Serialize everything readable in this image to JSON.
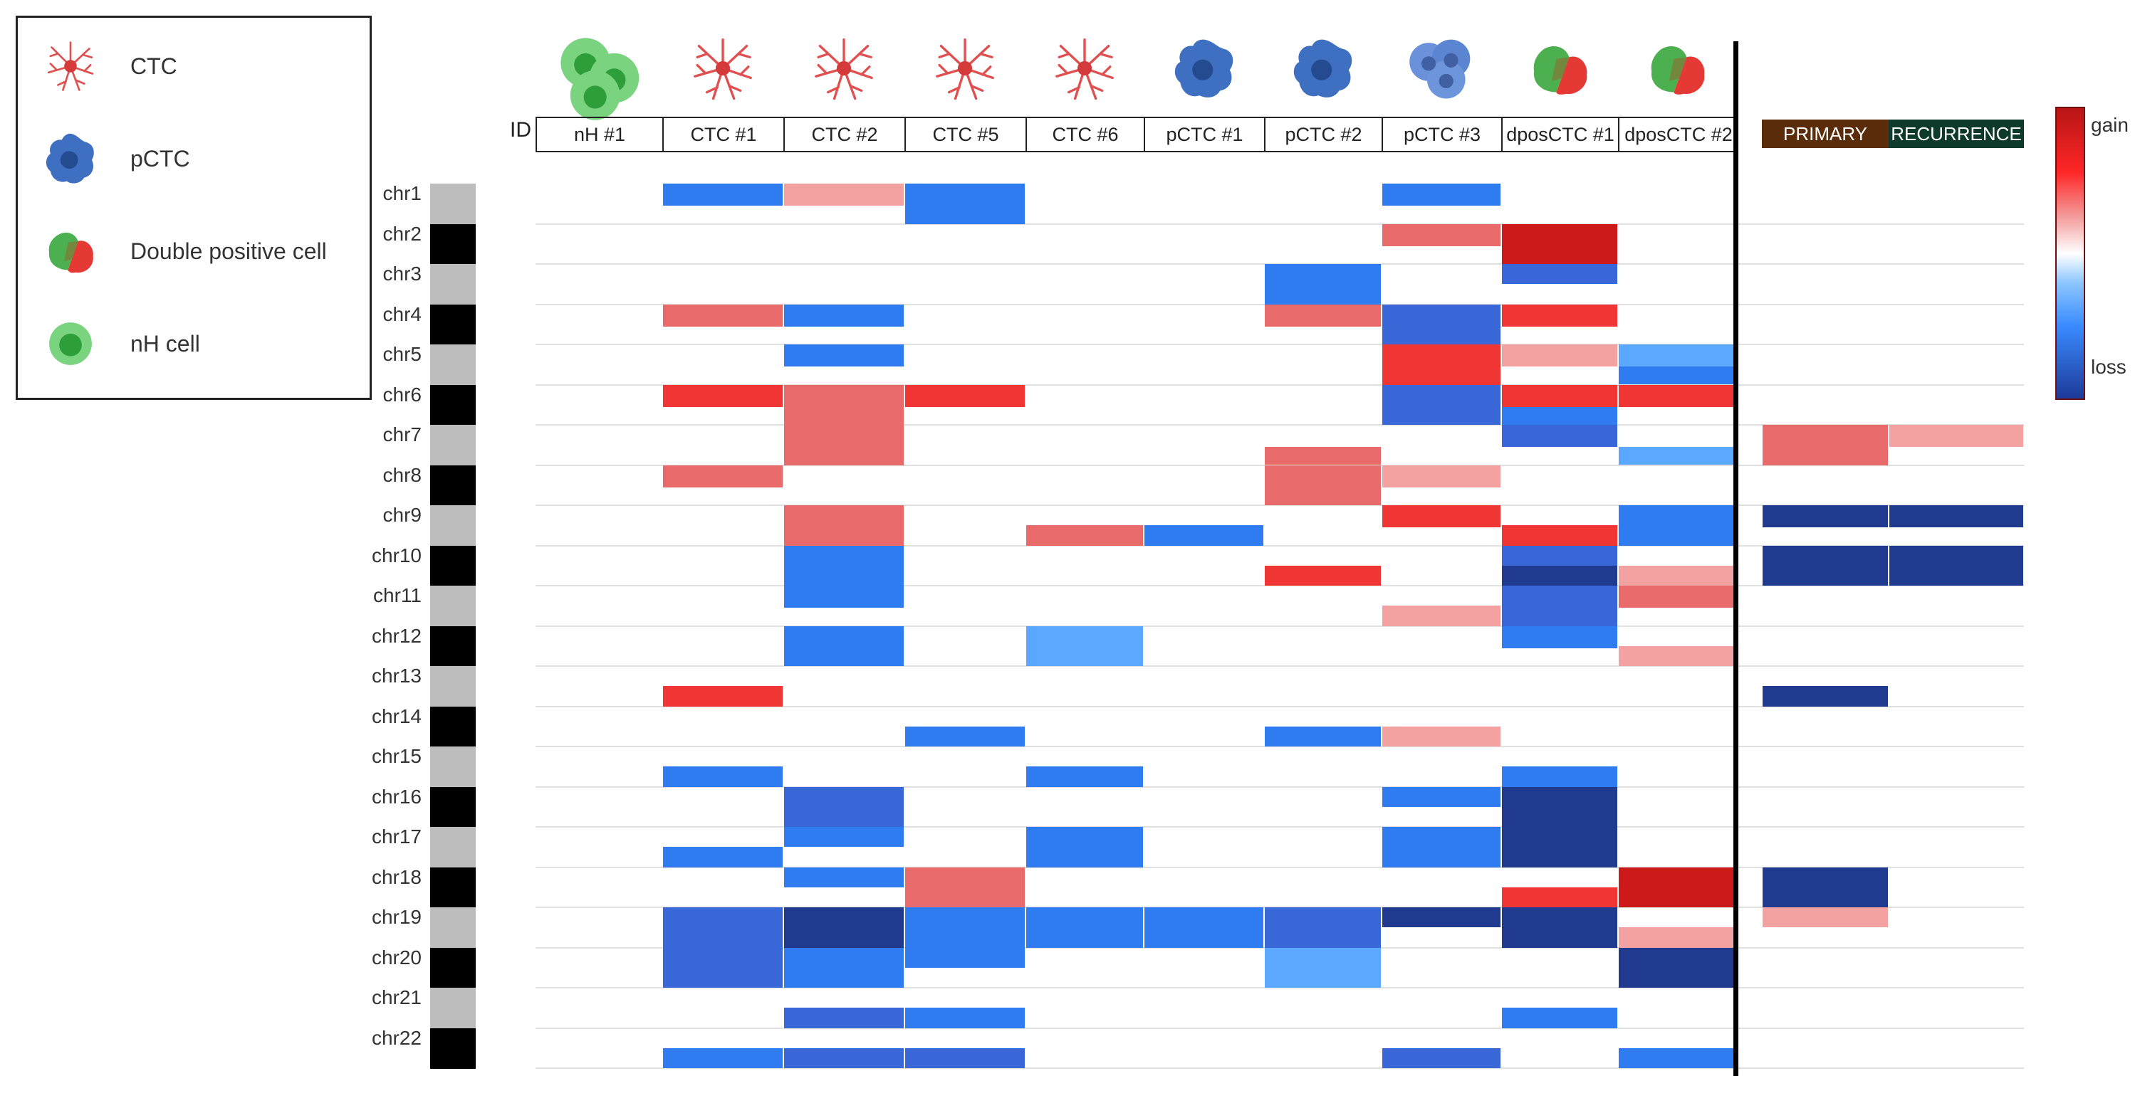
{
  "legend": {
    "items": [
      {
        "label": "CTC",
        "icon": "ctc-cell-icon"
      },
      {
        "label": "pCTC",
        "icon": "pctc-cell-icon"
      },
      {
        "label": "Double positive cell",
        "icon": "double-positive-cell-icon"
      },
      {
        "label": "nH cell",
        "icon": "nh-cell-icon"
      }
    ]
  },
  "id_label": "ID",
  "colorbar": {
    "top_label": "gain",
    "bottom_label": "loss"
  },
  "colors": {
    "gain_strong": "#cc1a1a",
    "gain_mid": "#f03535",
    "gain_weak": "#e86a6a",
    "gain_faint": "#f3a1a1",
    "loss_faint": "#5aa8ff",
    "loss_mid": "#2e7cf0",
    "loss_weak": "#3a67d8",
    "loss_strong": "#1f3a8f",
    "primary_header": "#5a2c0a",
    "recurrence_header": "#0d3a2a"
  },
  "chart_data": {
    "type": "heatmap",
    "value_scale": "copy number change, -1 (loss) to +1 (gain)",
    "rows": [
      "chr1",
      "chr2",
      "chr3",
      "chr4",
      "chr5",
      "chr6",
      "chr7",
      "chr8",
      "chr9",
      "chr10",
      "chr11",
      "chr12",
      "chr13",
      "chr14",
      "chr15",
      "chr16",
      "chr17",
      "chr18",
      "chr19",
      "chr20",
      "chr21",
      "chr22"
    ],
    "columns": [
      {
        "label": "nH #1",
        "cell_type": "nh"
      },
      {
        "label": "CTC #1",
        "cell_type": "ctc"
      },
      {
        "label": "CTC #2",
        "cell_type": "ctc"
      },
      {
        "label": "CTC #5",
        "cell_type": "ctc"
      },
      {
        "label": "CTC #6",
        "cell_type": "ctc"
      },
      {
        "label": "pCTC #1",
        "cell_type": "pctc"
      },
      {
        "label": "pCTC #2",
        "cell_type": "pctc"
      },
      {
        "label": "pCTC #3",
        "cell_type": "pctc_cluster"
      },
      {
        "label": "dposCTC #1",
        "cell_type": "dpos"
      },
      {
        "label": "dposCTC #2",
        "cell_type": "dpos"
      }
    ],
    "tumor_columns": [
      {
        "label": "PRIMARY"
      },
      {
        "label": "RECURRENCE"
      }
    ],
    "cells": [
      {
        "col": 1,
        "chr": 1,
        "start": 0.0,
        "end": 0.55,
        "value": -0.6
      },
      {
        "col": 2,
        "chr": 1,
        "start": 0.0,
        "end": 0.55,
        "value": 0.35
      },
      {
        "col": 3,
        "chr": 1,
        "start": 0.0,
        "end": 1.0,
        "value": -0.6
      },
      {
        "col": 7,
        "chr": 1,
        "start": 0.0,
        "end": 0.55,
        "value": -0.6
      },
      {
        "col": 7,
        "chr": 2,
        "start": 0.0,
        "end": 0.55,
        "value": 0.65
      },
      {
        "col": 8,
        "chr": 2,
        "start": 0.0,
        "end": 1.0,
        "value": 0.9
      },
      {
        "col": 6,
        "chr": 3,
        "start": 0.0,
        "end": 1.0,
        "value": -0.55
      },
      {
        "col": 8,
        "chr": 3,
        "start": 0.0,
        "end": 0.5,
        "value": -0.8
      },
      {
        "col": 1,
        "chr": 4,
        "start": 0.0,
        "end": 0.55,
        "value": 0.6
      },
      {
        "col": 2,
        "chr": 4,
        "start": 0.0,
        "end": 0.55,
        "value": -0.65
      },
      {
        "col": 6,
        "chr": 4,
        "start": 0.0,
        "end": 0.55,
        "value": 0.55
      },
      {
        "col": 7,
        "chr": 4,
        "start": 0.0,
        "end": 1.0,
        "value": -0.75
      },
      {
        "col": 8,
        "chr": 4,
        "start": 0.0,
        "end": 0.55,
        "value": 0.8
      },
      {
        "col": 2,
        "chr": 5,
        "start": 0.0,
        "end": 0.55,
        "value": -0.6
      },
      {
        "col": 7,
        "chr": 5,
        "start": 0.0,
        "end": 1.0,
        "value": 0.8
      },
      {
        "col": 8,
        "chr": 5,
        "start": 0.0,
        "end": 0.55,
        "value": 0.35
      },
      {
        "col": 9,
        "chr": 5,
        "start": 0.0,
        "end": 0.55,
        "value": -0.4
      },
      {
        "col": 9,
        "chr": 5,
        "start": 0.55,
        "end": 1.0,
        "value": -0.6
      },
      {
        "col": 1,
        "chr": 6,
        "start": 0.0,
        "end": 0.55,
        "value": 0.7
      },
      {
        "col": 2,
        "chr": 6,
        "start": 0.0,
        "end": 1.0,
        "value": 0.55
      },
      {
        "col": 3,
        "chr": 6,
        "start": 0.0,
        "end": 0.55,
        "value": 0.75
      },
      {
        "col": 7,
        "chr": 6,
        "start": 0.0,
        "end": 1.0,
        "value": -0.7
      },
      {
        "col": 8,
        "chr": 6,
        "start": 0.0,
        "end": 0.55,
        "value": 0.7
      },
      {
        "col": 8,
        "chr": 6,
        "start": 0.55,
        "end": 1.0,
        "value": -0.6
      },
      {
        "col": 9,
        "chr": 6,
        "start": 0.0,
        "end": 0.55,
        "value": 0.7
      },
      {
        "col": 2,
        "chr": 7,
        "start": 0.0,
        "end": 1.0,
        "value": 0.55
      },
      {
        "col": 8,
        "chr": 7,
        "start": 0.0,
        "end": 0.55,
        "value": -0.7
      },
      {
        "col": 9,
        "chr": 7,
        "start": 0.55,
        "end": 1.0,
        "value": -0.45
      },
      {
        "col": 6,
        "chr": 7,
        "start": 0.55,
        "end": 1.0,
        "value": 0.55
      },
      {
        "col": 1,
        "chr": 8,
        "start": 0.0,
        "end": 0.55,
        "value": 0.6
      },
      {
        "col": 6,
        "chr": 8,
        "start": 0.0,
        "end": 1.0,
        "value": 0.55
      },
      {
        "col": 7,
        "chr": 8,
        "start": 0.0,
        "end": 0.55,
        "value": 0.35
      },
      {
        "col": 2,
        "chr": 9,
        "start": 0.0,
        "end": 1.0,
        "value": 0.55
      },
      {
        "col": 4,
        "chr": 9,
        "start": 0.5,
        "end": 1.0,
        "value": 0.55
      },
      {
        "col": 5,
        "chr": 9,
        "start": 0.5,
        "end": 1.0,
        "value": -0.6
      },
      {
        "col": 7,
        "chr": 9,
        "start": 0.0,
        "end": 0.55,
        "value": 0.7
      },
      {
        "col": 8,
        "chr": 9,
        "start": 0.5,
        "end": 1.0,
        "value": 0.8
      },
      {
        "col": 9,
        "chr": 9,
        "start": 0.0,
        "end": 1.0,
        "value": -0.6
      },
      {
        "col": 2,
        "chr": 10,
        "start": 0.0,
        "end": 1.0,
        "value": -0.6
      },
      {
        "col": 6,
        "chr": 10,
        "start": 0.5,
        "end": 1.0,
        "value": 0.7
      },
      {
        "col": 8,
        "chr": 10,
        "start": 0.0,
        "end": 0.5,
        "value": -0.7
      },
      {
        "col": 8,
        "chr": 10,
        "start": 0.5,
        "end": 1.0,
        "value": -0.9
      },
      {
        "col": 9,
        "chr": 10,
        "start": 0.5,
        "end": 1.0,
        "value": 0.35
      },
      {
        "col": 2,
        "chr": 11,
        "start": 0.0,
        "end": 0.55,
        "value": -0.6
      },
      {
        "col": 7,
        "chr": 11,
        "start": 0.5,
        "end": 1.0,
        "value": 0.35
      },
      {
        "col": 8,
        "chr": 11,
        "start": 0.0,
        "end": 1.0,
        "value": -0.8
      },
      {
        "col": 9,
        "chr": 11,
        "start": 0.0,
        "end": 0.55,
        "value": 0.6
      },
      {
        "col": 2,
        "chr": 12,
        "start": 0.0,
        "end": 1.0,
        "value": -0.65
      },
      {
        "col": 4,
        "chr": 12,
        "start": 0.0,
        "end": 1.0,
        "value": -0.4
      },
      {
        "col": 8,
        "chr": 12,
        "start": 0.0,
        "end": 0.55,
        "value": -0.6
      },
      {
        "col": 9,
        "chr": 12,
        "start": 0.5,
        "end": 1.0,
        "value": 0.45
      },
      {
        "col": 1,
        "chr": 13,
        "start": 0.5,
        "end": 1.0,
        "value": 0.75
      },
      {
        "col": 3,
        "chr": 14,
        "start": 0.5,
        "end": 1.0,
        "value": -0.6
      },
      {
        "col": 6,
        "chr": 14,
        "start": 0.5,
        "end": 1.0,
        "value": -0.5
      },
      {
        "col": 7,
        "chr": 14,
        "start": 0.5,
        "end": 1.0,
        "value": 0.4
      },
      {
        "col": 1,
        "chr": 15,
        "start": 0.5,
        "end": 1.0,
        "value": -0.65
      },
      {
        "col": 4,
        "chr": 15,
        "start": 0.5,
        "end": 1.0,
        "value": -0.6
      },
      {
        "col": 8,
        "chr": 15,
        "start": 0.5,
        "end": 1.0,
        "value": -0.6
      },
      {
        "col": 2,
        "chr": 16,
        "start": 0.0,
        "end": 1.0,
        "value": -0.75
      },
      {
        "col": 7,
        "chr": 16,
        "start": 0.0,
        "end": 0.5,
        "value": -0.6
      },
      {
        "col": 8,
        "chr": 16,
        "start": 0.0,
        "end": 1.0,
        "value": -0.95
      },
      {
        "col": 2,
        "chr": 17,
        "start": 0.0,
        "end": 0.5,
        "value": -0.65
      },
      {
        "col": 1,
        "chr": 17,
        "start": 0.5,
        "end": 1.0,
        "value": -0.6
      },
      {
        "col": 4,
        "chr": 17,
        "start": 0.0,
        "end": 1.0,
        "value": -0.6
      },
      {
        "col": 7,
        "chr": 17,
        "start": 0.0,
        "end": 1.0,
        "value": -0.65
      },
      {
        "col": 8,
        "chr": 17,
        "start": 0.0,
        "end": 1.0,
        "value": -0.95
      },
      {
        "col": 2,
        "chr": 18,
        "start": 0.0,
        "end": 0.5,
        "value": -0.5
      },
      {
        "col": 3,
        "chr": 18,
        "start": 0.0,
        "end": 1.0,
        "value": 0.6
      },
      {
        "col": 8,
        "chr": 18,
        "start": 0.5,
        "end": 1.0,
        "value": 0.75
      },
      {
        "col": 9,
        "chr": 18,
        "start": 0.0,
        "end": 1.0,
        "value": 0.85
      },
      {
        "col": 1,
        "chr": 19,
        "start": 0.0,
        "end": 1.0,
        "value": -0.75
      },
      {
        "col": 2,
        "chr": 19,
        "start": 0.0,
        "end": 1.0,
        "value": -0.9
      },
      {
        "col": 3,
        "chr": 19,
        "start": 0.0,
        "end": 1.0,
        "value": -0.6
      },
      {
        "col": 4,
        "chr": 19,
        "start": 0.0,
        "end": 1.0,
        "value": -0.6
      },
      {
        "col": 5,
        "chr": 19,
        "start": 0.0,
        "end": 1.0,
        "value": -0.6
      },
      {
        "col": 6,
        "chr": 19,
        "start": 0.0,
        "end": 1.0,
        "value": -0.7
      },
      {
        "col": 7,
        "chr": 19,
        "start": 0.0,
        "end": 0.5,
        "value": -0.85
      },
      {
        "col": 8,
        "chr": 19,
        "start": 0.0,
        "end": 1.0,
        "value": -0.95
      },
      {
        "col": 9,
        "chr": 19,
        "start": 0.5,
        "end": 1.0,
        "value": 0.35
      },
      {
        "col": 1,
        "chr": 20,
        "start": 0.0,
        "end": 1.0,
        "value": -0.75
      },
      {
        "col": 2,
        "chr": 20,
        "start": 0.0,
        "end": 1.0,
        "value": -0.55
      },
      {
        "col": 3,
        "chr": 20,
        "start": 0.0,
        "end": 0.5,
        "value": -0.6
      },
      {
        "col": 6,
        "chr": 20,
        "start": 0.0,
        "end": 1.0,
        "value": -0.4
      },
      {
        "col": 9,
        "chr": 20,
        "start": 0.0,
        "end": 1.0,
        "value": -0.95
      },
      {
        "col": 2,
        "chr": 21,
        "start": 0.5,
        "end": 1.0,
        "value": -0.7
      },
      {
        "col": 3,
        "chr": 21,
        "start": 0.5,
        "end": 1.0,
        "value": -0.6
      },
      {
        "col": 8,
        "chr": 21,
        "start": 0.5,
        "end": 1.0,
        "value": -0.65
      },
      {
        "col": 1,
        "chr": 22,
        "start": 0.5,
        "end": 1.0,
        "value": -0.6
      },
      {
        "col": 2,
        "chr": 22,
        "start": 0.5,
        "end": 1.0,
        "value": -0.7
      },
      {
        "col": 3,
        "chr": 22,
        "start": 0.5,
        "end": 1.0,
        "value": -0.7
      },
      {
        "col": 7,
        "chr": 22,
        "start": 0.5,
        "end": 1.0,
        "value": -0.75
      },
      {
        "col": 9,
        "chr": 22,
        "start": 0.5,
        "end": 1.0,
        "value": -0.6
      }
    ],
    "tumor_cells": [
      {
        "col": 0,
        "chr": 7,
        "start": 0.0,
        "end": 1.0,
        "value": 0.55
      },
      {
        "col": 1,
        "chr": 7,
        "start": 0.0,
        "end": 0.55,
        "value": 0.35
      },
      {
        "col": 0,
        "chr": 9,
        "start": 0.0,
        "end": 0.55,
        "value": -0.95
      },
      {
        "col": 1,
        "chr": 9,
        "start": 0.0,
        "end": 0.55,
        "value": -0.95
      },
      {
        "col": 0,
        "chr": 10,
        "start": 0.0,
        "end": 1.0,
        "value": -0.95
      },
      {
        "col": 1,
        "chr": 10,
        "start": 0.0,
        "end": 0.5,
        "value": -0.95
      },
      {
        "col": 1,
        "chr": 10,
        "start": 0.5,
        "end": 1.0,
        "value": -0.85
      },
      {
        "col": 0,
        "chr": 13,
        "start": 0.5,
        "end": 1.0,
        "value": -0.95
      },
      {
        "col": 0,
        "chr": 18,
        "start": 0.0,
        "end": 1.0,
        "value": -0.95
      },
      {
        "col": 0,
        "chr": 19,
        "start": 0.0,
        "end": 0.5,
        "value": 0.35
      }
    ]
  }
}
